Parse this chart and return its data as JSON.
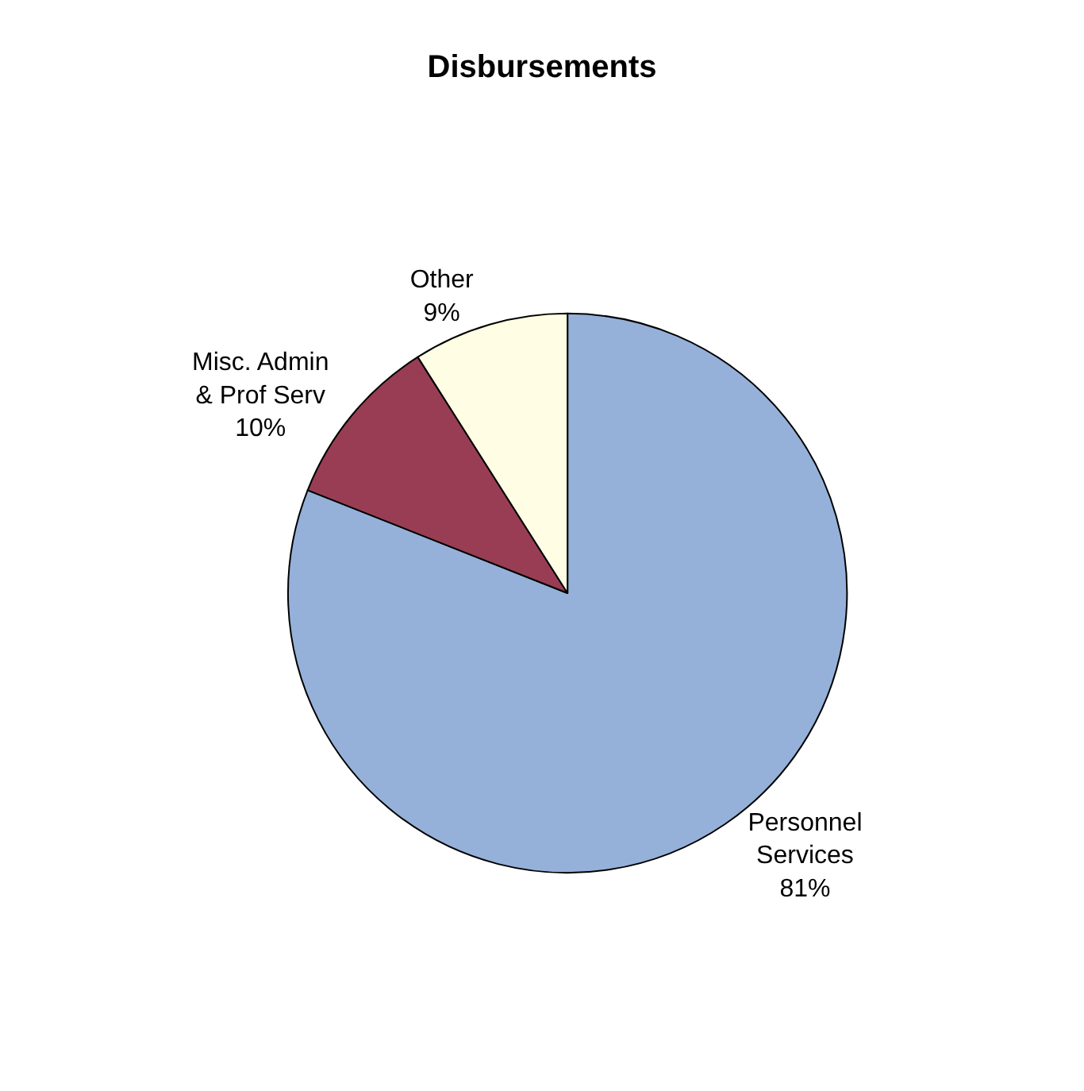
{
  "chart_data": {
    "type": "pie",
    "title": "Disbursements",
    "categories": [
      "Personnel\nServices",
      "Misc. Admin\n& Prof Serv",
      "Other"
    ],
    "values": [
      81,
      10,
      9
    ],
    "colors": [
      "#95b1d9",
      "#993d55",
      "#fffde3"
    ],
    "value_labels": [
      "81%",
      "10%",
      "9%"
    ],
    "legend": false
  }
}
